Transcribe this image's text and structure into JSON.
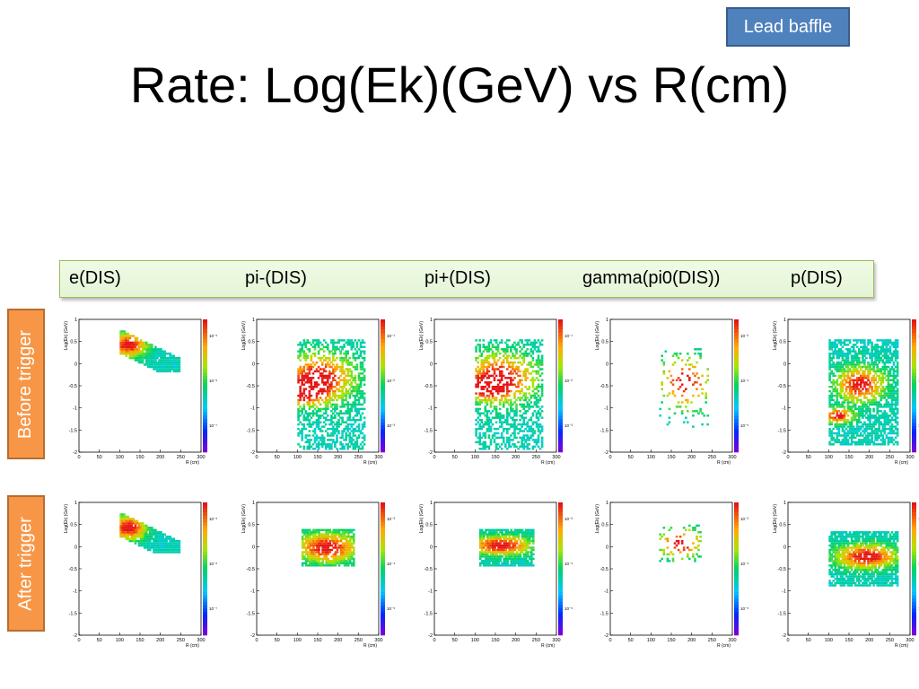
{
  "badge": "Lead baffle",
  "title": "Rate: Log(Ek)(GeV) vs R(cm)",
  "columns": [
    "e(DIS)",
    "pi-(DIS)",
    "pi+(DIS)",
    "gamma(pi0(DIS))",
    "p(DIS)"
  ],
  "rows": [
    "Before trigger",
    "After trigger"
  ],
  "chart_data": [
    {
      "type": "heatmap",
      "panel": "e(DIS) before trigger",
      "xlabel": "R (cm)",
      "ylabel": "Log(Ek) (GeV)",
      "xlim": [
        0,
        300
      ],
      "ylim": [
        -2,
        1
      ],
      "xticks": [
        0,
        50,
        100,
        150,
        200,
        250,
        300
      ],
      "yticks": [
        "1",
        "0.5",
        "0",
        "-0.5",
        "-1",
        "-1.5",
        "-2"
      ],
      "cbar_ticks": [
        "10⁻⁵",
        "10⁻⁶",
        "10⁻⁷"
      ],
      "region": "band from R 100-250, Log(Ek) 0.8 to 0.1, hottest near R 110-140"
    },
    {
      "type": "heatmap",
      "panel": "pi-(DIS) before trigger",
      "xlabel": "R (cm)",
      "ylabel": "Log(Ek) (GeV)",
      "xlim": [
        0,
        300
      ],
      "ylim": [
        -2,
        1
      ],
      "xticks": [
        0,
        50,
        100,
        150,
        200,
        250,
        300
      ],
      "yticks": [
        "1",
        "0.5",
        "0",
        "-0.5",
        "-1",
        "-1.5",
        "-2"
      ],
      "cbar_ticks": [
        "10⁻¹",
        "10⁻²",
        "10⁻³"
      ],
      "region": "R 100-260, Log(Ek) 0.6 to -1.9, hottest near R 110, Log(Ek) -0.6"
    },
    {
      "type": "heatmap",
      "panel": "pi+(DIS) before trigger",
      "xlabel": "R (cm)",
      "ylabel": "Log(Ek) (GeV)",
      "xlim": [
        0,
        300
      ],
      "ylim": [
        -2,
        1
      ],
      "xticks": [
        0,
        50,
        100,
        150,
        200,
        250,
        300
      ],
      "yticks": [
        "1",
        "0.5",
        "0",
        "-0.5",
        "-1",
        "-1.5",
        "-2"
      ],
      "cbar_ticks": [
        "10⁻¹",
        "10⁻²",
        "10⁻³"
      ],
      "region": "R 100-260, Log(Ek) 0.6 to -1.9, hottest near R 120, Log(Ek) -0.5"
    },
    {
      "type": "heatmap",
      "panel": "gamma(pi0(DIS)) before trigger",
      "xlabel": "R (cm)",
      "ylabel": "Log(Ek) (GeV)",
      "xlim": [
        0,
        300
      ],
      "ylim": [
        -2,
        1
      ],
      "xticks": [
        0,
        50,
        100,
        150,
        200,
        250,
        300
      ],
      "yticks": [
        "1",
        "0.5",
        "0",
        "-0.5",
        "-1",
        "-1.5",
        "-2"
      ],
      "cbar_ticks": [
        "10⁻³",
        "10⁻⁴",
        "10⁻⁵"
      ],
      "region": "sparse points R 120-240, Log(Ek) 0.4 to -1.4"
    },
    {
      "type": "heatmap",
      "panel": "p(DIS) before trigger",
      "xlabel": "R (cm)",
      "ylabel": "Log(Ek) (GeV)",
      "xlim": [
        0,
        300
      ],
      "ylim": [
        -2,
        1
      ],
      "xticks": [
        0,
        50,
        100,
        150,
        200,
        250,
        300
      ],
      "yticks": [
        "1",
        "0.5",
        "0",
        "-0.5",
        "-1",
        "-1.5",
        "-2"
      ],
      "cbar_ticks": [
        "10⁻³",
        "10⁻⁴",
        "10⁻⁵"
      ],
      "region": "R 100-270, Log(Ek) 0.6 to -1.8, hot core near R 150-200, Log(Ek) -0.5 and streak to R 110, Log(Ek) -1.2"
    },
    {
      "type": "heatmap",
      "panel": "e(DIS) after trigger",
      "xlabel": "R (cm)",
      "ylabel": "Log(Ek) (GeV)",
      "xlim": [
        0,
        300
      ],
      "ylim": [
        -2,
        1
      ],
      "xticks": [
        0,
        50,
        100,
        150,
        200,
        250,
        300
      ],
      "yticks": [
        "1",
        "0.5",
        "0",
        "-0.5",
        "-1",
        "-1.5",
        "-2"
      ],
      "cbar_ticks": [
        "10⁻⁵",
        "10⁻⁶",
        "10⁻⁷"
      ],
      "region": "band from R 100-250, Log(Ek) 0.8 to -0.1, hottest near R 110-140"
    },
    {
      "type": "heatmap",
      "panel": "pi-(DIS) after trigger",
      "xlabel": "R (cm)",
      "ylabel": "Log(Ek) (GeV)",
      "xlim": [
        0,
        300
      ],
      "ylim": [
        -2,
        1
      ],
      "xticks": [
        0,
        50,
        100,
        150,
        200,
        250,
        300
      ],
      "yticks": [
        "1",
        "0.5",
        "0",
        "-0.5",
        "-1",
        "-1.5",
        "-2"
      ],
      "cbar_ticks": [
        "10⁻³",
        "10⁻⁴",
        "10⁻⁵"
      ],
      "region": "block R 110-240, Log(Ek) 0.4 to -0.4"
    },
    {
      "type": "heatmap",
      "panel": "pi+(DIS) after trigger",
      "xlabel": "R (cm)",
      "ylabel": "Log(Ek) (GeV)",
      "xlim": [
        0,
        300
      ],
      "ylim": [
        -2,
        1
      ],
      "xticks": [
        0,
        50,
        100,
        150,
        200,
        250,
        300
      ],
      "yticks": [
        "1",
        "0.5",
        "0",
        "-0.5",
        "-1",
        "-1.5",
        "-2"
      ],
      "cbar_ticks": [
        "10⁻³",
        "10⁻⁴",
        "10⁻⁵"
      ],
      "region": "block R 110-240, Log(Ek) 0.4 to -0.4, hottest near Log(Ek) 0"
    },
    {
      "type": "heatmap",
      "panel": "gamma(pi0(DIS)) after trigger",
      "xlabel": "R (cm)",
      "ylabel": "Log(Ek) (GeV)",
      "xlim": [
        0,
        300
      ],
      "ylim": [
        -2,
        1
      ],
      "xticks": [
        0,
        50,
        100,
        150,
        200,
        250,
        300
      ],
      "yticks": [
        "1",
        "0.5",
        "0",
        "-0.5",
        "-1",
        "-1.5",
        "-2"
      ],
      "cbar_ticks": [
        "10⁻³",
        "10⁻⁴",
        "10⁻⁵"
      ],
      "region": "sparse points R 120-220, Log(Ek) 0.5 to -0.3"
    },
    {
      "type": "heatmap",
      "panel": "p(DIS) after trigger",
      "xlabel": "R (cm)",
      "ylabel": "Log(Ek) (GeV)",
      "xlim": [
        0,
        300
      ],
      "ylim": [
        -2,
        1
      ],
      "xticks": [
        0,
        50,
        100,
        150,
        200,
        250,
        300
      ],
      "yticks": [
        "1",
        "0.5",
        "0",
        "-0.5",
        "-1",
        "-1.5",
        "-2"
      ],
      "cbar_ticks": [
        "10⁻⁴",
        "10⁻⁵",
        "10⁻⁶"
      ],
      "region": "block R 100-270, Log(Ek) 0.4 to -0.8, hottest near Log(Ek) -0.2"
    }
  ]
}
